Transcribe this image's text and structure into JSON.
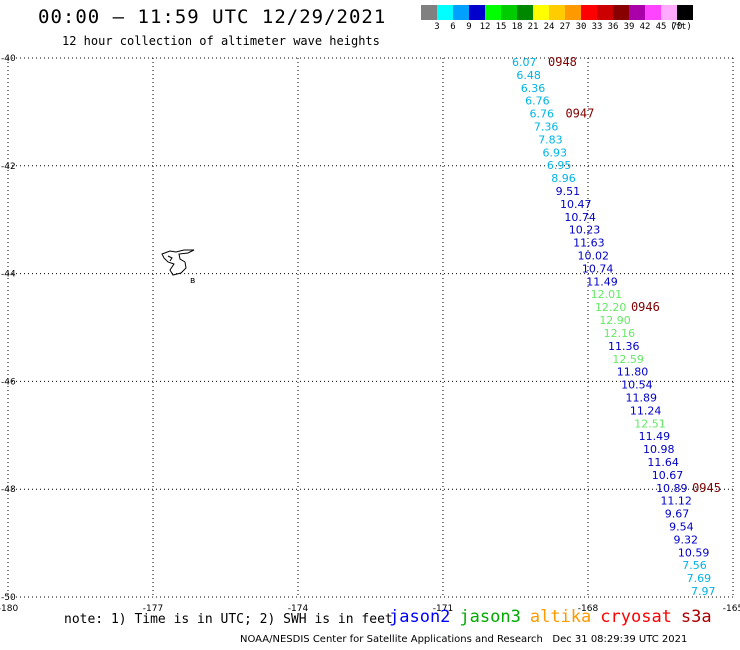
{
  "header": {
    "title": "00:00 – 11:59 UTC 12/29/2021",
    "subtitle": "12 hour collection of altimeter wave heights"
  },
  "colorbar": {
    "unit": "(ft)",
    "segments": [
      {
        "label": "3",
        "color": "#808080"
      },
      {
        "label": "6",
        "color": "#00ffff"
      },
      {
        "label": "9",
        "color": "#00a0ff"
      },
      {
        "label": "12",
        "color": "#0000cc"
      },
      {
        "label": "15",
        "color": "#00ff00"
      },
      {
        "label": "18",
        "color": "#00cc00"
      },
      {
        "label": "21",
        "color": "#008800"
      },
      {
        "label": "24",
        "color": "#ffff00"
      },
      {
        "label": "27",
        "color": "#ffcc00"
      },
      {
        "label": "30",
        "color": "#ff9900"
      },
      {
        "label": "33",
        "color": "#ff0000"
      },
      {
        "label": "36",
        "color": "#cc0000"
      },
      {
        "label": "39",
        "color": "#880000"
      },
      {
        "label": "42",
        "color": "#aa00aa"
      },
      {
        "label": "45",
        "color": "#ff44ff"
      },
      {
        "label": "70",
        "color": "#ffaaff"
      },
      {
        "label": "",
        "color": "#000000"
      }
    ]
  },
  "map": {
    "lon_range": [
      -180,
      -165
    ],
    "lat_range": [
      -50,
      -40
    ],
    "lat_labels": [
      "-40",
      "-42",
      "-44",
      "-46",
      "-48",
      "-50"
    ],
    "lon_labels": [
      "-180",
      "-177",
      "-174",
      "-171",
      "-168",
      "-165"
    ],
    "island_label": "в"
  },
  "track": [
    {
      "text": "6.07",
      "color": "#00b4e6"
    },
    {
      "text": "6.48",
      "color": "#00b4e6"
    },
    {
      "text": "6.36",
      "color": "#00b4e6"
    },
    {
      "text": "6.76",
      "color": "#00b4e6"
    },
    {
      "text": "6.76",
      "color": "#00b4e6"
    },
    {
      "text": "7.36",
      "color": "#00b4e6"
    },
    {
      "text": "7.83",
      "color": "#00b4e6"
    },
    {
      "text": "6.93",
      "color": "#00b4e6"
    },
    {
      "text": "6.95",
      "color": "#00b4e6"
    },
    {
      "text": "8.96",
      "color": "#00b4e6"
    },
    {
      "text": "9.51",
      "color": "#0000c8"
    },
    {
      "text": "10.47",
      "color": "#0000c8"
    },
    {
      "text": "10.74",
      "color": "#0000c8"
    },
    {
      "text": "10.23",
      "color": "#0000c8"
    },
    {
      "text": "11.63",
      "color": "#0000c8"
    },
    {
      "text": "10.02",
      "color": "#0000c8"
    },
    {
      "text": "10.74",
      "color": "#0000c8"
    },
    {
      "text": "11.49",
      "color": "#0000c8"
    },
    {
      "text": "12.01",
      "color": "#66e866"
    },
    {
      "text": "12.20",
      "color": "#66e866"
    },
    {
      "text": "12.90",
      "color": "#66e866"
    },
    {
      "text": "12.16",
      "color": "#66e866"
    },
    {
      "text": "11.36",
      "color": "#0000c8"
    },
    {
      "text": "12.59",
      "color": "#66e866"
    },
    {
      "text": "11.80",
      "color": "#0000c8"
    },
    {
      "text": "10.54",
      "color": "#0000c8"
    },
    {
      "text": "11.89",
      "color": "#0000c8"
    },
    {
      "text": "11.24",
      "color": "#0000c8"
    },
    {
      "text": "12.51",
      "color": "#66e866"
    },
    {
      "text": "11.49",
      "color": "#0000c8"
    },
    {
      "text": "10.98",
      "color": "#0000c8"
    },
    {
      "text": "11.64",
      "color": "#0000c8"
    },
    {
      "text": "10.67",
      "color": "#0000c8"
    },
    {
      "text": "10.89",
      "color": "#0000c8"
    },
    {
      "text": "11.12",
      "color": "#0000c8"
    },
    {
      "text": "9.67",
      "color": "#0000c8"
    },
    {
      "text": "9.54",
      "color": "#0000c8"
    },
    {
      "text": "9.32",
      "color": "#0000c8"
    },
    {
      "text": "10.59",
      "color": "#0000c8"
    },
    {
      "text": "7.56",
      "color": "#00b4e6"
    },
    {
      "text": "7.69",
      "color": "#00b4e6"
    },
    {
      "text": "7.97",
      "color": "#00b4e6"
    }
  ],
  "time_labels": [
    "0948",
    "0947",
    "0946",
    "0945"
  ],
  "time_label_color": "#800000",
  "footer": {
    "note": "note: 1) Time is in UTC; 2) SWH is in feet",
    "credit": "NOAA/NESDIS Center for Satellite Applications and Research   Dec 31 08:29:39 UTC 2021",
    "satellites": [
      {
        "name": "jason2",
        "color": "#0000ff"
      },
      {
        "name": "jason3",
        "color": "#00aa00"
      },
      {
        "name": "altika",
        "color": "#ff9900"
      },
      {
        "name": "cryosat",
        "color": "#ff0000"
      },
      {
        "name": "s3a",
        "color": "#aa0000"
      }
    ]
  }
}
